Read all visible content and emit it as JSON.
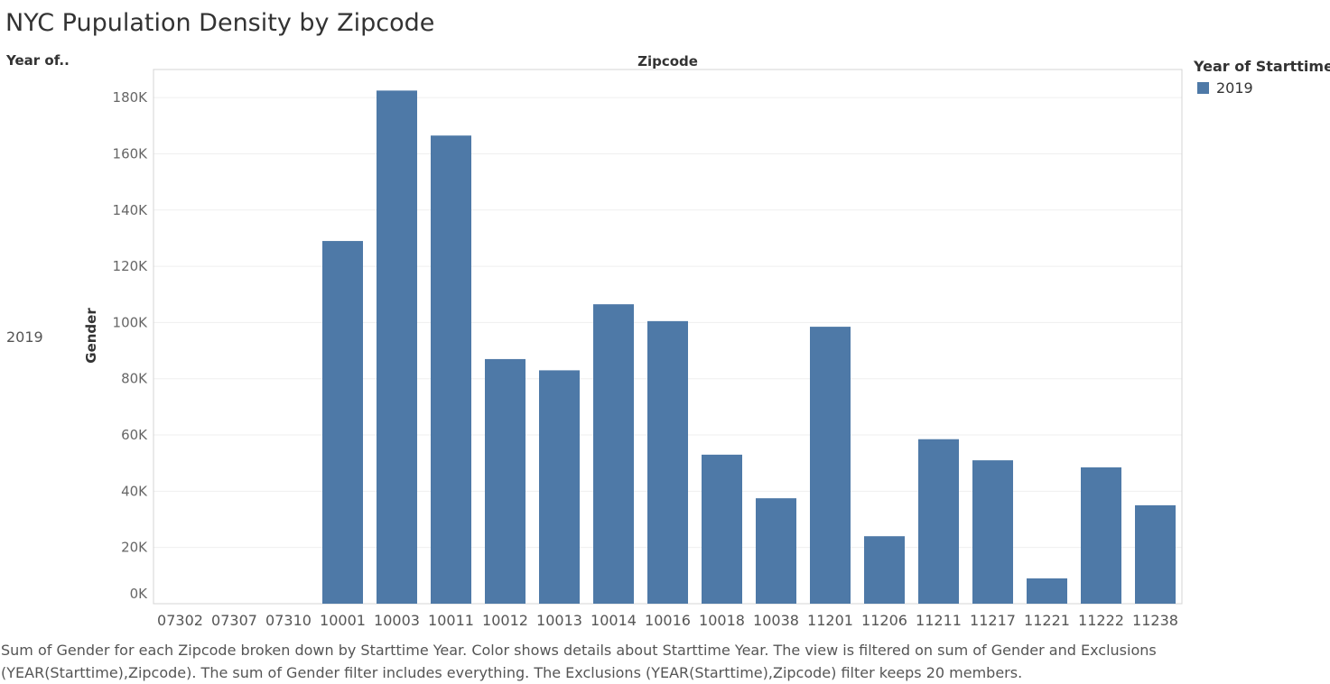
{
  "title": "NYC Pupulation Density by Zipcode",
  "row_header": "Year of..",
  "column_header": "Zipcode",
  "row_value": "2019",
  "legend": {
    "title": "Year of Starttime",
    "items": [
      {
        "label": "2019",
        "color": "#4e79a7"
      }
    ]
  },
  "caption": "Sum of Gender for each Zipcode broken down by Starttime Year.  Color shows details about Starttime Year. The view is filtered on sum of Gender and Exclusions (YEAR(Starttime),Zipcode). The sum of Gender filter includes everything. The Exclusions (YEAR(Starttime),Zipcode) filter keeps 20 members.",
  "chart_data": {
    "type": "bar",
    "categories": [
      "07302",
      "07307",
      "07310",
      "10001",
      "10003",
      "10011",
      "10012",
      "10013",
      "10014",
      "10016",
      "10018",
      "10038",
      "11201",
      "11206",
      "11211",
      "11217",
      "11221",
      "11222",
      "11238"
    ],
    "series": [
      {
        "name": "2019",
        "color": "#4e79a7",
        "values": [
          0,
          0,
          0,
          129000,
          182500,
          166500,
          87000,
          83000,
          106500,
          100500,
          53000,
          37500,
          98500,
          24000,
          58500,
          51000,
          9000,
          48500,
          35000
        ]
      }
    ],
    "xlabel": "Zipcode",
    "ylabel": "Gender",
    "ylim": [
      0,
      190000
    ],
    "yticks": [
      0,
      20000,
      40000,
      60000,
      80000,
      100000,
      120000,
      140000,
      160000,
      180000
    ],
    "ytick_labels": [
      "0K",
      "20K",
      "40K",
      "60K",
      "80K",
      "100K",
      "120K",
      "140K",
      "160K",
      "180K"
    ],
    "grid": true,
    "legend_position": "top-right"
  }
}
